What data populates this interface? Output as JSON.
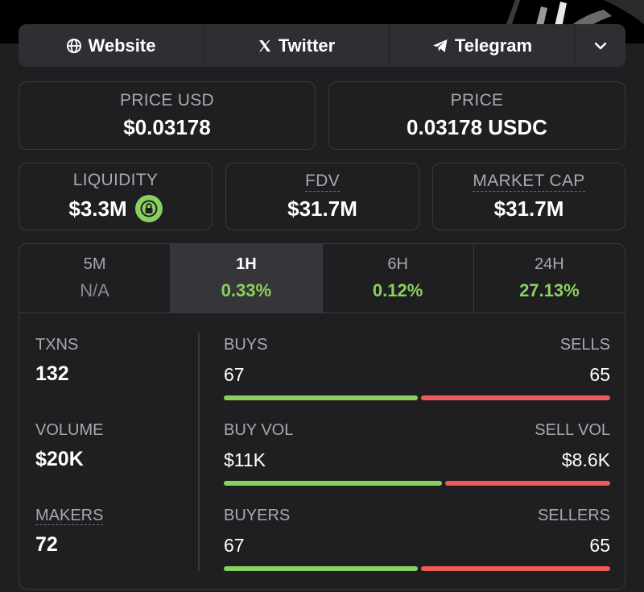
{
  "links": {
    "website": "Website",
    "twitter": "Twitter",
    "telegram": "Telegram"
  },
  "price_usd": {
    "label": "PRICE USD",
    "value": "$0.03178"
  },
  "price": {
    "label": "PRICE",
    "value": "0.03178 USDC"
  },
  "liquidity": {
    "label": "LIQUIDITY",
    "value": "$3.3M"
  },
  "fdv": {
    "label": "FDV",
    "value": "$31.7M"
  },
  "market_cap": {
    "label": "MARKET CAP",
    "value": "$31.7M"
  },
  "timeframes": [
    {
      "label": "5M",
      "value": "N/A"
    },
    {
      "label": "1H",
      "value": "0.33%"
    },
    {
      "label": "6H",
      "value": "0.12%"
    },
    {
      "label": "24H",
      "value": "27.13%"
    }
  ],
  "active_timeframe": "1H",
  "txns": {
    "label": "TXNS",
    "value": "132"
  },
  "volume": {
    "label": "VOLUME",
    "value": "$20K"
  },
  "makers": {
    "label": "MAKERS",
    "value": "72"
  },
  "buys_sells": {
    "left_label": "BUYS",
    "right_label": "SELLS",
    "left_value": "67",
    "right_value": "65",
    "left_fraction": 0.507
  },
  "buy_sell_vol": {
    "left_label": "BUY VOL",
    "right_label": "SELL VOL",
    "left_value": "$11K",
    "right_value": "$8.6K",
    "left_fraction": 0.57
  },
  "buyers_sellers": {
    "left_label": "BUYERS",
    "right_label": "SELLERS",
    "left_value": "67",
    "right_value": "65",
    "left_fraction": 0.507
  },
  "colors": {
    "positive": "#8ad05e",
    "negative": "#ee5a57",
    "background": "#1f1f22"
  },
  "icons": {
    "website": "globe-icon",
    "twitter": "x-logo-icon",
    "telegram": "telegram-icon",
    "more": "chevron-down-icon",
    "liquidity": "lock-icon"
  }
}
